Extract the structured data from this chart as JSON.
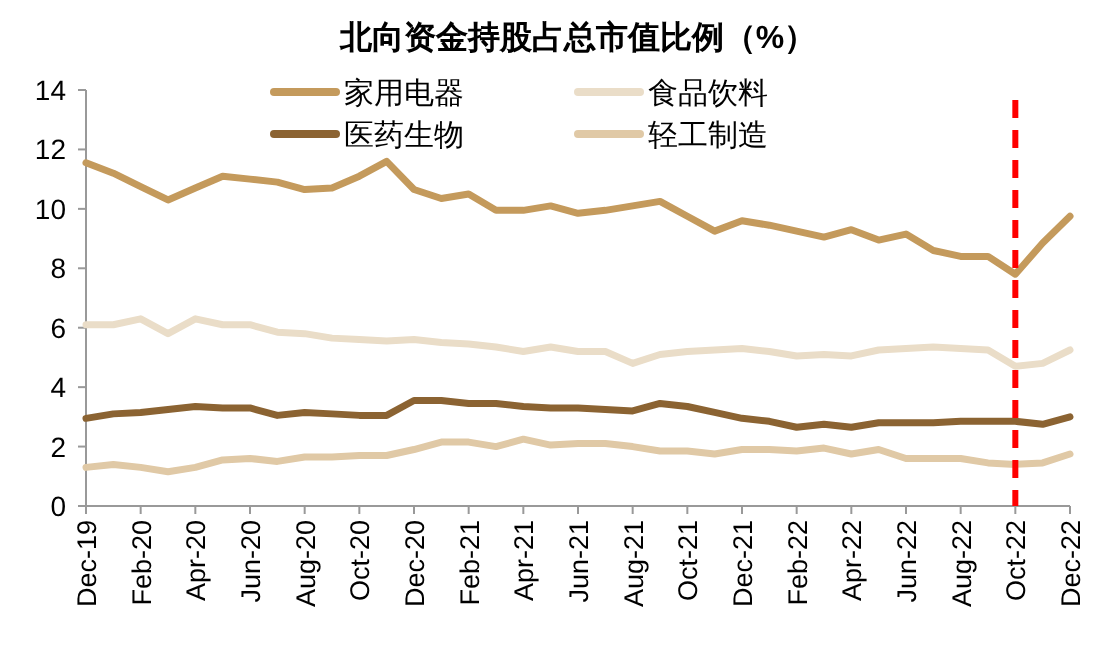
{
  "chart_data": {
    "type": "line",
    "title": "北向资金持股占总市值比例（%）",
    "categories": [
      "Dec-19",
      null,
      "Feb-20",
      null,
      "Apr-20",
      null,
      "Jun-20",
      null,
      "Aug-20",
      null,
      "Oct-20",
      null,
      "Dec-20",
      null,
      "Feb-21",
      null,
      "Apr-21",
      null,
      "Jun-21",
      null,
      "Aug-21",
      null,
      "Oct-21",
      null,
      "Dec-21",
      null,
      "Feb-22",
      null,
      "Apr-22",
      null,
      "Jun-22",
      null,
      "Aug-22",
      null,
      "Oct-22",
      null,
      "Dec-22"
    ],
    "series": [
      {
        "name": "家用电器",
        "color": "#c49a5c",
        "values": [
          11.55,
          11.2,
          10.75,
          10.3,
          10.7,
          11.1,
          11.0,
          10.9,
          10.65,
          10.7,
          11.1,
          11.6,
          10.65,
          10.35,
          10.5,
          9.95,
          9.95,
          10.1,
          9.85,
          9.95,
          10.1,
          10.25,
          9.75,
          9.25,
          9.6,
          9.45,
          9.25,
          9.05,
          9.3,
          8.95,
          9.15,
          8.6,
          8.4,
          8.4,
          7.8,
          8.85,
          9.75
        ]
      },
      {
        "name": "食品饮料",
        "color": "#eaddc8",
        "values": [
          6.1,
          6.1,
          6.3,
          5.8,
          6.3,
          6.1,
          6.1,
          5.85,
          5.8,
          5.65,
          5.6,
          5.55,
          5.6,
          5.5,
          5.45,
          5.35,
          5.2,
          5.35,
          5.2,
          5.2,
          4.8,
          5.1,
          5.2,
          5.25,
          5.3,
          5.2,
          5.05,
          5.1,
          5.05,
          5.25,
          5.3,
          5.35,
          5.3,
          5.25,
          4.7,
          4.8,
          5.25
        ]
      },
      {
        "name": "医药生物",
        "color": "#8b6332",
        "values": [
          2.95,
          3.1,
          3.15,
          3.25,
          3.35,
          3.3,
          3.3,
          3.05,
          3.15,
          3.1,
          3.05,
          3.05,
          3.55,
          3.55,
          3.45,
          3.45,
          3.35,
          3.3,
          3.3,
          3.25,
          3.2,
          3.45,
          3.35,
          3.15,
          2.95,
          2.85,
          2.65,
          2.75,
          2.65,
          2.8,
          2.8,
          2.8,
          2.85,
          2.85,
          2.85,
          2.75,
          3.0
        ]
      },
      {
        "name": "轻工制造",
        "color": "#e0c9a6",
        "values": [
          1.3,
          1.4,
          1.3,
          1.15,
          1.3,
          1.55,
          1.6,
          1.5,
          1.65,
          1.65,
          1.7,
          1.7,
          1.9,
          2.15,
          2.15,
          2.0,
          2.25,
          2.05,
          2.1,
          2.1,
          2.0,
          1.85,
          1.85,
          1.75,
          1.9,
          1.9,
          1.85,
          1.95,
          1.75,
          1.9,
          1.6,
          1.6,
          1.6,
          1.45,
          1.4,
          1.45,
          1.75
        ]
      }
    ],
    "ylim": [
      0,
      14
    ],
    "yticks": [
      0,
      2,
      4,
      6,
      8,
      10,
      12,
      14
    ],
    "ref_lines": [
      {
        "axis": "x",
        "value": "Oct-22",
        "color": "#ff0000",
        "line_style": "dashed"
      }
    ],
    "legend": "top",
    "grid": false,
    "marker": "none",
    "line_style": "solid"
  }
}
